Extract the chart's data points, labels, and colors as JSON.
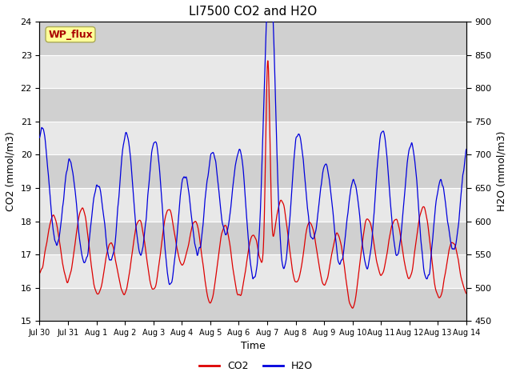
{
  "title": "LI7500 CO2 and H2O",
  "xlabel": "Time",
  "ylabel_left": "CO2 (mmol/m3)",
  "ylabel_right": "H2O (mmol/m3)",
  "annotation": "WP_flux",
  "co2_ylim": [
    15.0,
    24.0
  ],
  "h2o_ylim": [
    450,
    900
  ],
  "co2_yticks": [
    15.0,
    16.0,
    17.0,
    18.0,
    19.0,
    20.0,
    21.0,
    22.0,
    23.0,
    24.0
  ],
  "h2o_yticks": [
    450,
    500,
    550,
    600,
    650,
    700,
    750,
    800,
    850,
    900
  ],
  "xtick_labels": [
    "Jul 30",
    "Jul 31",
    "Aug 1",
    "Aug 2",
    "Aug 3",
    "Aug 4",
    "Aug 5",
    "Aug 6",
    "Aug 7",
    "Aug 8",
    "Aug 9",
    "Aug 10",
    "Aug 11",
    "Aug 12",
    "Aug 13",
    "Aug 14"
  ],
  "co2_color": "#dd0000",
  "h2o_color": "#0000dd",
  "legend_co2": "CO2",
  "legend_h2o": "H2O",
  "background_color": "#ffffff",
  "plot_bg_light": "#e8e8e8",
  "plot_bg_dark": "#d0d0d0",
  "grid_color": "#ffffff",
  "annotation_bg": "#ffff99",
  "annotation_edge": "#aaaa55",
  "annotation_text_color": "#aa0000",
  "title_fontsize": 11,
  "axis_fontsize": 9,
  "tick_fontsize": 8,
  "legend_fontsize": 9,
  "annotation_fontsize": 9,
  "n_points": 4320,
  "num_days": 15
}
